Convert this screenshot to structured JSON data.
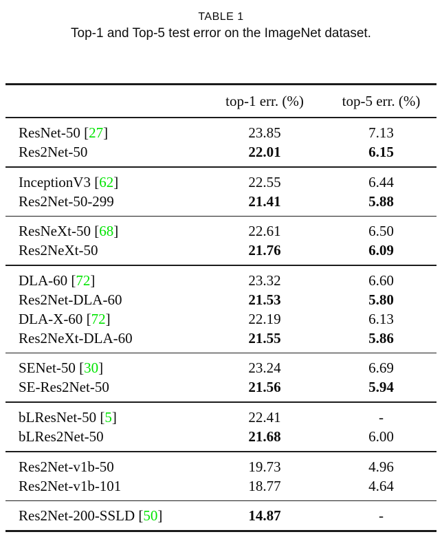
{
  "caption": {
    "title": "TABLE 1",
    "subtitle": "Top-1 and Top-5 test error on the ImageNet dataset."
  },
  "table": {
    "header": {
      "col_method": "",
      "col_top1": "top-1 err. (%)",
      "col_top5": "top-5 err. (%)"
    },
    "groups": [
      {
        "rows": [
          {
            "method": "ResNet-50",
            "cite": "27",
            "top1": "23.85",
            "top1_bold": false,
            "top5": "7.13",
            "top5_bold": false
          },
          {
            "method": "Res2Net-50",
            "cite": null,
            "top1": "22.01",
            "top1_bold": true,
            "top5": "6.15",
            "top5_bold": true
          }
        ]
      },
      {
        "rows": [
          {
            "method": "InceptionV3",
            "cite": "62",
            "top1": "22.55",
            "top1_bold": false,
            "top5": "6.44",
            "top5_bold": false
          },
          {
            "method": "Res2Net-50-299",
            "cite": null,
            "top1": "21.41",
            "top1_bold": true,
            "top5": "5.88",
            "top5_bold": true
          }
        ]
      },
      {
        "rows": [
          {
            "method": "ResNeXt-50",
            "cite": "68",
            "top1": "22.61",
            "top1_bold": false,
            "top5": "6.50",
            "top5_bold": false
          },
          {
            "method": "Res2NeXt-50",
            "cite": null,
            "top1": "21.76",
            "top1_bold": true,
            "top5": "6.09",
            "top5_bold": true
          }
        ]
      },
      {
        "rows": [
          {
            "method": "DLA-60",
            "cite": "72",
            "top1": "23.32",
            "top1_bold": false,
            "top5": "6.60",
            "top5_bold": false
          },
          {
            "method": "Res2Net-DLA-60",
            "cite": null,
            "top1": "21.53",
            "top1_bold": true,
            "top5": "5.80",
            "top5_bold": true
          },
          {
            "method": "DLA-X-60",
            "cite": "72",
            "top1": "22.19",
            "top1_bold": false,
            "top5": "6.13",
            "top5_bold": false
          },
          {
            "method": "Res2NeXt-DLA-60",
            "cite": null,
            "top1": "21.55",
            "top1_bold": true,
            "top5": "5.86",
            "top5_bold": true
          }
        ]
      },
      {
        "rows": [
          {
            "method": "SENet-50",
            "cite": "30",
            "top1": "23.24",
            "top1_bold": false,
            "top5": "6.69",
            "top5_bold": false
          },
          {
            "method": "SE-Res2Net-50",
            "cite": null,
            "top1": "21.56",
            "top1_bold": true,
            "top5": "5.94",
            "top5_bold": true
          }
        ]
      },
      {
        "rows": [
          {
            "method": "bLResNet-50",
            "cite": "5",
            "top1": "22.41",
            "top1_bold": false,
            "top5": "-",
            "top5_bold": false
          },
          {
            "method": "bLRes2Net-50",
            "cite": null,
            "top1": "21.68",
            "top1_bold": true,
            "top5": "6.00",
            "top5_bold": false
          }
        ]
      },
      {
        "rows": [
          {
            "method": "Res2Net-v1b-50",
            "cite": null,
            "top1": "19.73",
            "top1_bold": false,
            "top5": "4.96",
            "top5_bold": false
          },
          {
            "method": "Res2Net-v1b-101",
            "cite": null,
            "top1": "18.77",
            "top1_bold": false,
            "top5": "4.64",
            "top5_bold": false
          }
        ]
      },
      {
        "rows": [
          {
            "method": "Res2Net-200-SSLD",
            "cite": "50",
            "top1": "14.87",
            "top1_bold": true,
            "top5": "-",
            "top5_bold": false
          }
        ]
      }
    ]
  },
  "colors": {
    "citation_green": "#00e400",
    "rule": "#1b1b1b",
    "text": "#0a0a0a",
    "background": "#ffffff"
  }
}
